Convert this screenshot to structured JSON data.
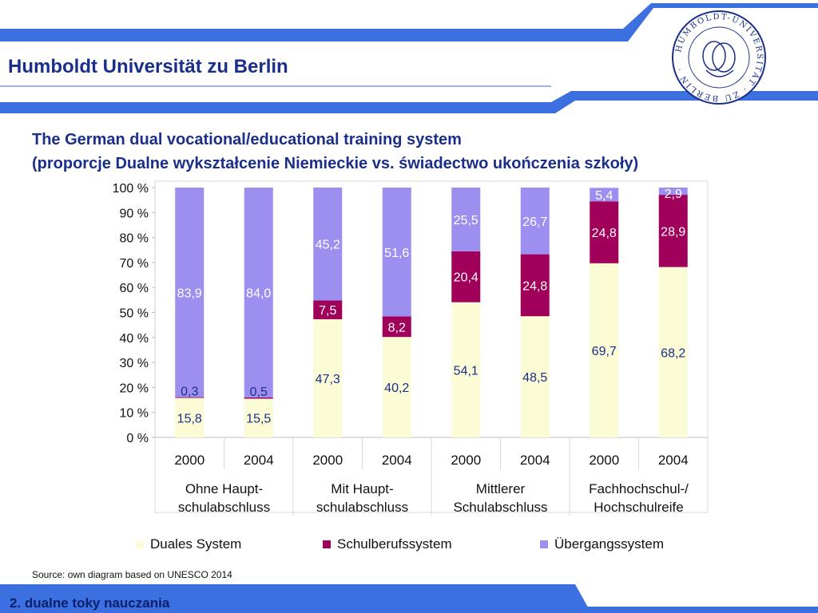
{
  "header": {
    "institution": "Humboldt Universität zu Berlin",
    "logo_text": "HUMBOLDT-UNIVERSITÄT ZU BERLIN",
    "brand_color": "#3c6fe0",
    "title_color": "#1a2f8a"
  },
  "slide": {
    "title_line1": "The German dual vocational/educational training system",
    "title_line2": "(proporcje Dualne wykształcenie Niemieckie vs. świadectwo ukończenia szkoły)"
  },
  "chart_data": {
    "type": "bar",
    "stacked": true,
    "ylim": [
      0,
      100
    ],
    "yticks": [
      "0 %",
      "10 %",
      "20 %",
      "30 %",
      "40 %",
      "50 %",
      "60 %",
      "70 %",
      "80 %",
      "90 %",
      "100 %"
    ],
    "years": [
      "2000",
      "2004",
      "2000",
      "2004",
      "2000",
      "2004",
      "2000",
      "2004"
    ],
    "groups": [
      {
        "label_line1": "Ohne Haupt-",
        "label_line2": "schulabschluss"
      },
      {
        "label_line1": "Mit Haupt-",
        "label_line2": "schulabschluss"
      },
      {
        "label_line1": "Mittlerer",
        "label_line2": "Schulabschluss"
      },
      {
        "label_line1": "Fachhochschul-/",
        "label_line2": "Hochschulreife"
      }
    ],
    "series": [
      {
        "name": "Duales System",
        "color": "#fbfbd6",
        "label_color": "#1a2f8a",
        "values": [
          15.8,
          15.5,
          47.3,
          40.2,
          54.1,
          48.5,
          69.7,
          68.2
        ],
        "labels": [
          "15,8",
          "15,5",
          "47,3",
          "40,2",
          "54,1",
          "48,5",
          "69,7",
          "68,2"
        ]
      },
      {
        "name": "Schulberufssystem",
        "color": "#a0005a",
        "label_color": "#ffffff",
        "values": [
          0.3,
          0.5,
          7.5,
          8.2,
          20.4,
          24.8,
          24.8,
          28.9
        ],
        "labels": [
          "0,3",
          "0,5",
          "7,5",
          "8,2",
          "20,4",
          "24,8",
          "24,8",
          "28,9"
        ]
      },
      {
        "name": "Übergangssystem",
        "color": "#9d8fef",
        "label_color": "#ffffff",
        "values": [
          83.9,
          84.0,
          45.2,
          51.6,
          25.5,
          26.7,
          5.4,
          2.9
        ],
        "labels": [
          "83,9",
          "84,0",
          "45,2",
          "51,6",
          "25,5",
          "26,7",
          "5,4",
          "2,9"
        ]
      }
    ]
  },
  "source": "Source: own diagram based on UNESCO 2014",
  "footer": {
    "text": "2. dualne toky nauczania"
  }
}
